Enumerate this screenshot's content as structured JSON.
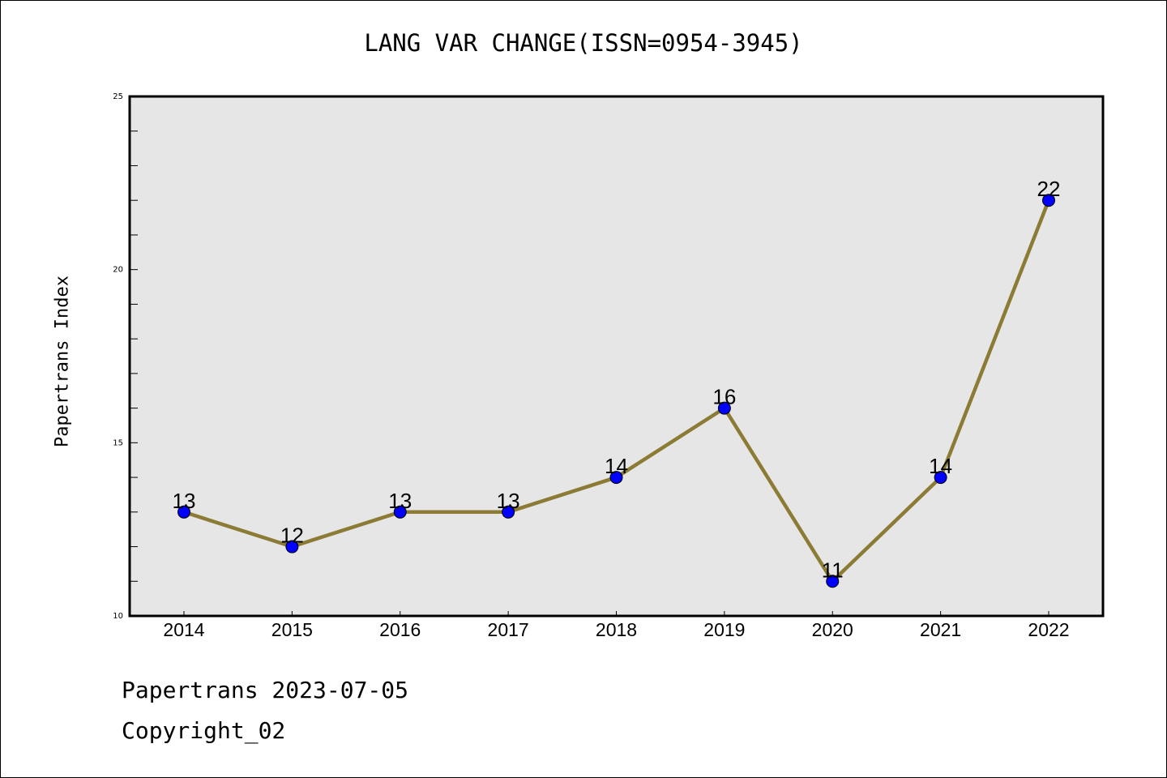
{
  "chart_data": {
    "type": "line",
    "title": "LANG VAR CHANGE(ISSN=0954-3945)",
    "xlabel": "",
    "ylabel": "Papertrans Index",
    "categories": [
      "2014",
      "2015",
      "2016",
      "2017",
      "2018",
      "2019",
      "2020",
      "2021",
      "2022"
    ],
    "values": [
      13,
      12,
      13,
      13,
      14,
      16,
      11,
      14,
      22
    ],
    "ylim": [
      10,
      25
    ],
    "yticks": [
      10,
      15,
      20,
      25
    ],
    "grid": false,
    "line_color": "#8B7B35",
    "marker_color": "#0000FF",
    "plot_bg": "#E6E6E6"
  },
  "footer": {
    "line1": "Papertrans 2023-07-05",
    "line2": "Copyright_02"
  }
}
